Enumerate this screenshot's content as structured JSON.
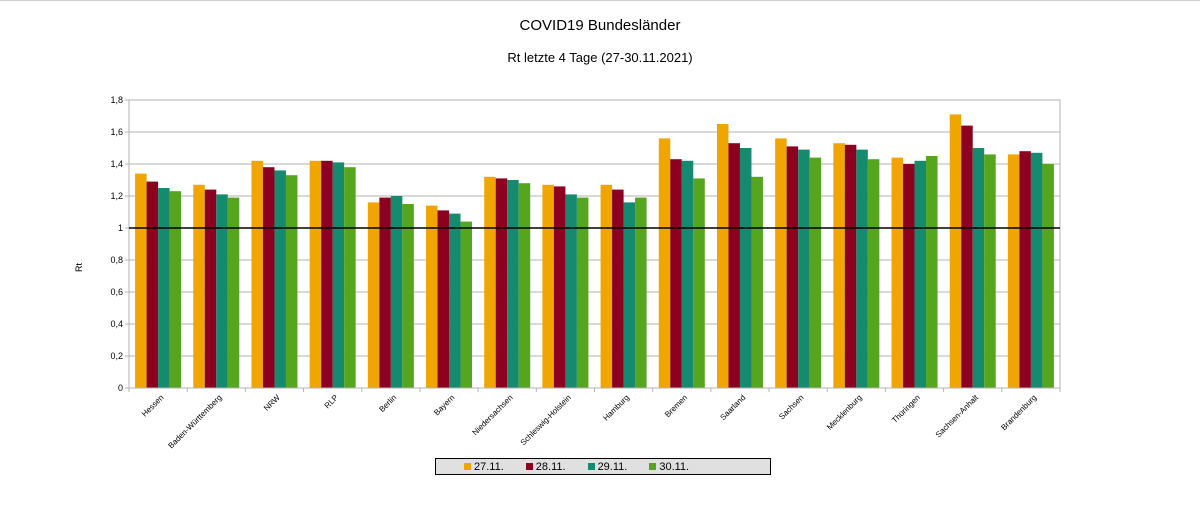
{
  "chart_data": {
    "type": "bar",
    "title": "COVID19  Bundesländer",
    "subtitle": "Rt letzte 4 Tage (27-30.11.2021)",
    "ylabel": "Rt",
    "xlabel": "",
    "ylim": [
      0,
      1.8
    ],
    "yticks": [
      "0",
      "0,2",
      "0,4",
      "0,6",
      "0,8",
      "1",
      "1,2",
      "1,4",
      "1,6",
      "1,8"
    ],
    "reference_line": 1,
    "grid": true,
    "legend_position": "bottom",
    "categories": [
      "Hessen",
      "Baden-Württemberg",
      "NRW",
      "RLP",
      "Berlin",
      "Bayern",
      "Niedersachsen",
      "Schleswig-Holstein",
      "Hamburg",
      "Bremen",
      "Saarland",
      "Sachsen",
      "Mecklenburg",
      "Thüringen",
      "Sachsen-Anhalt",
      "Brandenburg"
    ],
    "series": [
      {
        "name": "27.11.",
        "color": "#f0a500",
        "values": [
          1.34,
          1.27,
          1.42,
          1.42,
          1.16,
          1.14,
          1.32,
          1.27,
          1.27,
          1.56,
          1.65,
          1.56,
          1.53,
          1.44,
          1.71,
          1.46
        ]
      },
      {
        "name": "28.11.",
        "color": "#8c0020",
        "values": [
          1.29,
          1.24,
          1.38,
          1.42,
          1.19,
          1.11,
          1.31,
          1.26,
          1.24,
          1.43,
          1.53,
          1.51,
          1.52,
          1.4,
          1.64,
          1.48
        ]
      },
      {
        "name": "29.11.",
        "color": "#168a6e",
        "values": [
          1.25,
          1.21,
          1.36,
          1.41,
          1.2,
          1.09,
          1.3,
          1.21,
          1.16,
          1.42,
          1.5,
          1.49,
          1.49,
          1.42,
          1.5,
          1.47
        ]
      },
      {
        "name": "30.11.",
        "color": "#56a51e",
        "values": [
          1.23,
          1.19,
          1.33,
          1.38,
          1.15,
          1.04,
          1.28,
          1.19,
          1.19,
          1.31,
          1.32,
          1.44,
          1.43,
          1.45,
          1.46,
          1.4
        ]
      }
    ]
  }
}
